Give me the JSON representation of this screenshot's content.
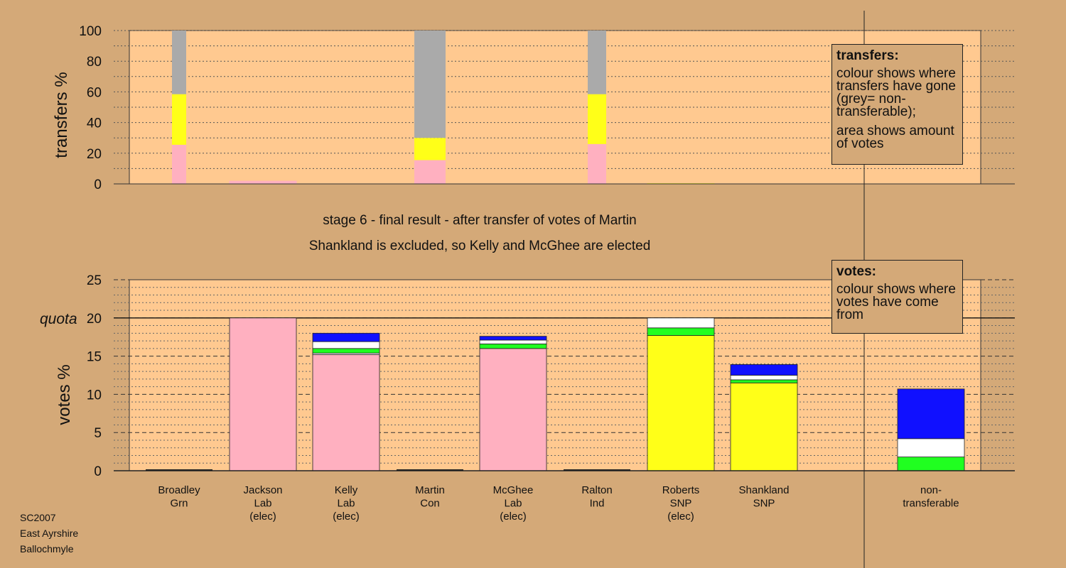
{
  "title_line1": "stage 6 - final result - after transfer of votes of Martin",
  "title_line2": "Shankland is excluded, so Kelly and McGhee are elected",
  "transfers_legend": {
    "heading": "transfers:",
    "line1": "colour shows where transfers have gone (grey= non-transferable);",
    "line2": "area shows amount of votes"
  },
  "votes_legend": {
    "heading": "votes:",
    "line1": "colour shows where votes have come from"
  },
  "footer": {
    "election": "SC2007",
    "council": "East Ayrshire",
    "ward": "Ballochmyle"
  },
  "colors": {
    "background": "#d4a978",
    "plot": "#ffc990",
    "Lab": "#ffb0c0",
    "SNP": "#ffff18",
    "Con": "#1010ff",
    "Grn": "#20ff20",
    "Ind": "#ffffff",
    "nontransferable": "#aaaaaa"
  },
  "chart_data": [
    {
      "type": "bar",
      "ylabel": "transfers %",
      "ylim": [
        0,
        100
      ],
      "yticks": [
        0,
        20,
        40,
        60,
        80,
        100
      ],
      "grid": true,
      "columns": [
        {
          "name": "Broadley Grn",
          "segments": [
            {
              "party": "Lab",
              "from": 0,
              "to": 25.5
            },
            {
              "party": "SNP",
              "from": 25.5,
              "to": 58.5
            },
            {
              "party": "nontransferable",
              "from": 58.5,
              "to": 100
            }
          ]
        },
        {
          "name": "Jackson Lab (elec)",
          "segments": [
            {
              "party": "Lab",
              "from": 0,
              "to": 2
            }
          ]
        },
        {
          "name": "Kelly Lab (elec)",
          "segments": []
        },
        {
          "name": "Martin Con",
          "segments": [
            {
              "party": "Lab",
              "from": 0,
              "to": 15.5
            },
            {
              "party": "SNP",
              "from": 15.5,
              "to": 30
            },
            {
              "party": "nontransferable",
              "from": 30,
              "to": 100
            }
          ]
        },
        {
          "name": "McGhee Lab (elec)",
          "segments": []
        },
        {
          "name": "Ralton Ind",
          "segments": [
            {
              "party": "Lab",
              "from": 0,
              "to": 26
            },
            {
              "party": "SNP",
              "from": 26,
              "to": 58.5
            },
            {
              "party": "nontransferable",
              "from": 58.5,
              "to": 100
            }
          ]
        },
        {
          "name": "Roberts SNP (elec)",
          "segments": [
            {
              "party": "SNP",
              "from": 0,
              "to": 0.4
            }
          ]
        },
        {
          "name": "Shankland SNP",
          "segments": []
        }
      ]
    },
    {
      "type": "bar",
      "ylabel": "votes %",
      "ylim": [
        0,
        25
      ],
      "yticks": [
        0,
        5,
        10,
        15,
        20,
        25
      ],
      "quota": 20,
      "quota_label": "quota",
      "grid": true,
      "categories": [
        {
          "line1": "Broadley",
          "line2": "Grn",
          "line3": ""
        },
        {
          "line1": "Jackson",
          "line2": "Lab",
          "line3": "(elec)"
        },
        {
          "line1": "Kelly",
          "line2": "Lab",
          "line3": "(elec)"
        },
        {
          "line1": "Martin",
          "line2": "Con",
          "line3": ""
        },
        {
          "line1": "McGhee",
          "line2": "Lab",
          "line3": "(elec)"
        },
        {
          "line1": "Ralton",
          "line2": "Ind",
          "line3": ""
        },
        {
          "line1": "Roberts",
          "line2": "SNP",
          "line3": "(elec)"
        },
        {
          "line1": "Shankland",
          "line2": "SNP",
          "line3": ""
        },
        {
          "line1": "non-",
          "line2": "transferable",
          "line3": ""
        }
      ],
      "stacks": [
        [],
        [
          {
            "party": "Lab",
            "value": 20
          }
        ],
        [
          {
            "party": "Lab",
            "value": 15.2
          },
          {
            "party": "Ind",
            "value": 0.2
          },
          {
            "party": "Grn",
            "value": 0.6
          },
          {
            "party": "Ind",
            "value": 0.9
          },
          {
            "party": "Con",
            "value": 1.1
          }
        ],
        [],
        [
          {
            "party": "Lab",
            "value": 16
          },
          {
            "party": "Grn",
            "value": 0.6
          },
          {
            "party": "Ind",
            "value": 0.5
          },
          {
            "party": "Con",
            "value": 0.5
          }
        ],
        [],
        [
          {
            "party": "SNP",
            "value": 17.7
          },
          {
            "party": "Grn",
            "value": 1
          },
          {
            "party": "Ind",
            "value": 1.3
          }
        ],
        [
          {
            "party": "SNP",
            "value": 11.5
          },
          {
            "party": "Grn",
            "value": 0.4
          },
          {
            "party": "Ind",
            "value": 0.6
          },
          {
            "party": "Con",
            "value": 1.4
          }
        ],
        [
          {
            "party": "Grn",
            "value": 1.8
          },
          {
            "party": "Ind",
            "value": 2.4
          },
          {
            "party": "Con",
            "value": 6.5
          }
        ]
      ]
    }
  ]
}
